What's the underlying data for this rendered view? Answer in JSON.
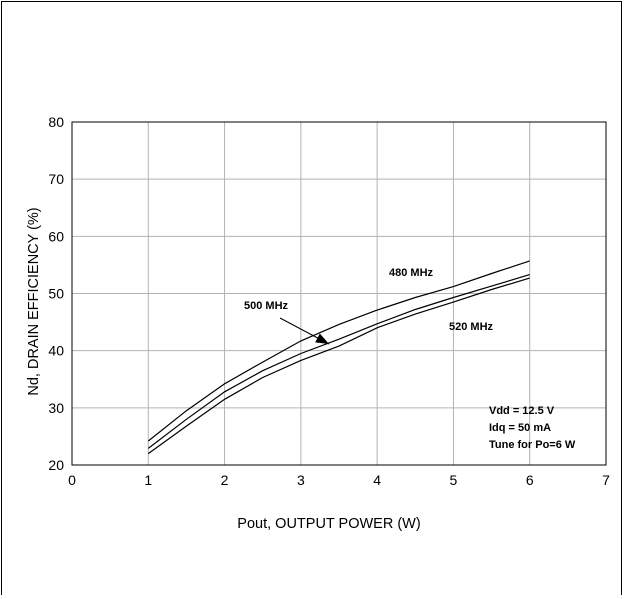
{
  "chart_data": {
    "type": "line",
    "title": "",
    "xlabel": "Pout, OUTPUT POWER (W)",
    "ylabel": "Nd, DRAIN EFFICIENCY (%)",
    "xlim": [
      0,
      7
    ],
    "ylim": [
      20,
      80
    ],
    "xticks": [
      0,
      1,
      2,
      3,
      4,
      5,
      6,
      7
    ],
    "yticks": [
      20,
      30,
      40,
      50,
      60,
      70,
      80
    ],
    "grid": true,
    "series": [
      {
        "name": "480 MHz",
        "x": [
          1,
          1.5,
          2,
          2.5,
          3,
          3.5,
          4,
          4.5,
          5,
          5.5,
          6
        ],
        "y": [
          24.2,
          29.5,
          34.2,
          38.0,
          41.7,
          44.6,
          47.1,
          49.3,
          51.2,
          53.5,
          55.7
        ]
      },
      {
        "name": "500 MHz",
        "x": [
          1,
          1.5,
          2,
          2.5,
          3,
          3.5,
          4,
          4.5,
          5,
          5.5,
          6
        ],
        "y": [
          22.9,
          28.0,
          32.8,
          36.5,
          39.5,
          42.0,
          44.7,
          47.2,
          49.3,
          51.3,
          53.3
        ]
      },
      {
        "name": "520 MHz",
        "x": [
          1,
          1.5,
          2,
          2.5,
          3,
          3.5,
          4,
          4.5,
          5,
          5.5,
          6
        ],
        "y": [
          22.0,
          26.8,
          31.5,
          35.3,
          38.3,
          40.8,
          44.0,
          46.4,
          48.5,
          50.7,
          52.7
        ]
      }
    ],
    "annotations": {
      "series_labels": [
        "480 MHz",
        "500 MHz",
        "520 MHz"
      ],
      "conditions": [
        "Vdd = 12.5 V",
        "Idq = 50 mA",
        "Tune for Po=6 W"
      ]
    }
  }
}
